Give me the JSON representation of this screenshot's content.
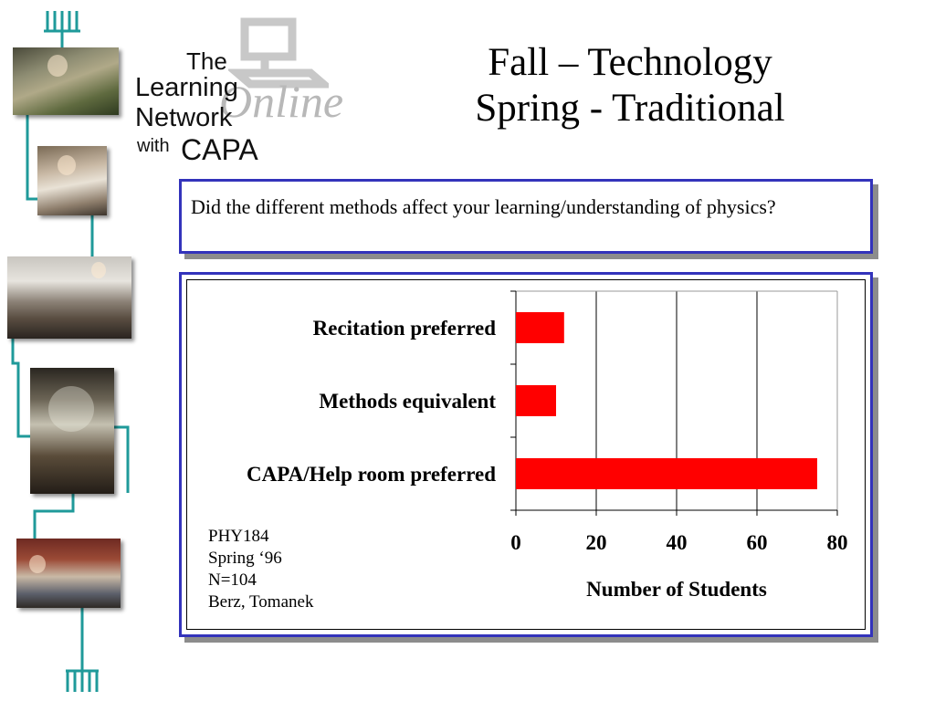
{
  "title": {
    "line1": "Fall – Technology",
    "line2": "Spring - Traditional"
  },
  "logo": {
    "the": "The",
    "learning": "Learning",
    "network": "Network",
    "with": "with",
    "capa": "CAPA",
    "online": "Online"
  },
  "question": "Did the different methods affect your learning/understanding of physics?",
  "note": {
    "course": "PHY184",
    "term": "Spring ‘96",
    "n": "N=104",
    "authors": "Berz, Tomanek"
  },
  "colors": {
    "bar": "#ff0000",
    "frame": "#3333bb",
    "network_line": "#1f9a9a"
  },
  "chart_data": {
    "type": "bar",
    "orientation": "horizontal",
    "categories": [
      "Recitation preferred",
      "Methods equivalent",
      "CAPA/Help room preferred"
    ],
    "values": [
      12,
      10,
      75
    ],
    "xlabel": "Number of Students",
    "ylabel": "",
    "xlim": [
      0,
      80
    ],
    "xticks": [
      0,
      20,
      40,
      60,
      80
    ],
    "grid": "vertical"
  }
}
